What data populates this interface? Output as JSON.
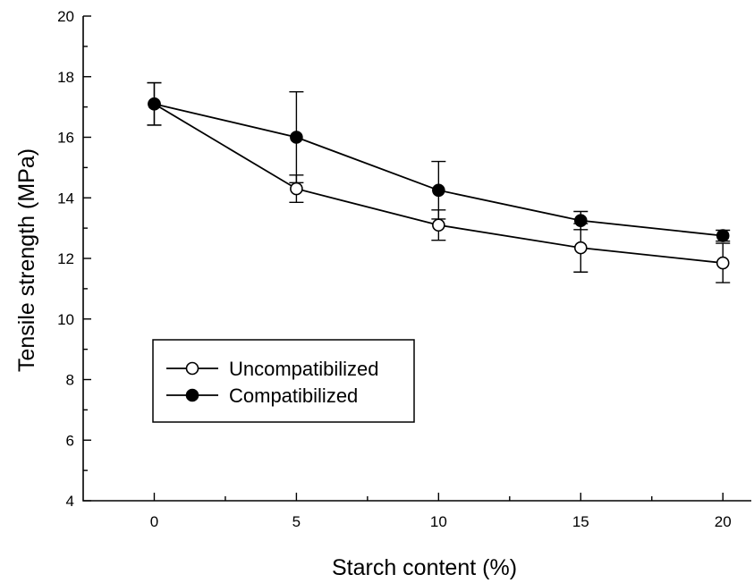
{
  "chart_data": {
    "type": "line",
    "title": "",
    "xlabel": "Starch content (%)",
    "ylabel": "Tensile strength (MPa)",
    "xlim": [
      -2.5,
      21
    ],
    "ylim": [
      4,
      20
    ],
    "x_ticks": [
      0,
      5,
      10,
      15,
      20
    ],
    "y_ticks": [
      4,
      6,
      8,
      10,
      12,
      14,
      16,
      18,
      20
    ],
    "grid": false,
    "legend_position": "center-left",
    "x": [
      0,
      5,
      10,
      15,
      20
    ],
    "series": [
      {
        "name": "Uncompatibilized",
        "marker": "open-circle",
        "values": [
          17.1,
          14.3,
          13.1,
          12.35,
          11.85
        ],
        "error": [
          0.7,
          0.45,
          0.5,
          0.8,
          0.65
        ]
      },
      {
        "name": "Compatibilized",
        "marker": "filled-circle",
        "values": [
          17.1,
          16.0,
          14.25,
          13.25,
          12.75
        ],
        "error": [
          0.7,
          1.5,
          0.95,
          0.3,
          0.18
        ]
      }
    ]
  }
}
